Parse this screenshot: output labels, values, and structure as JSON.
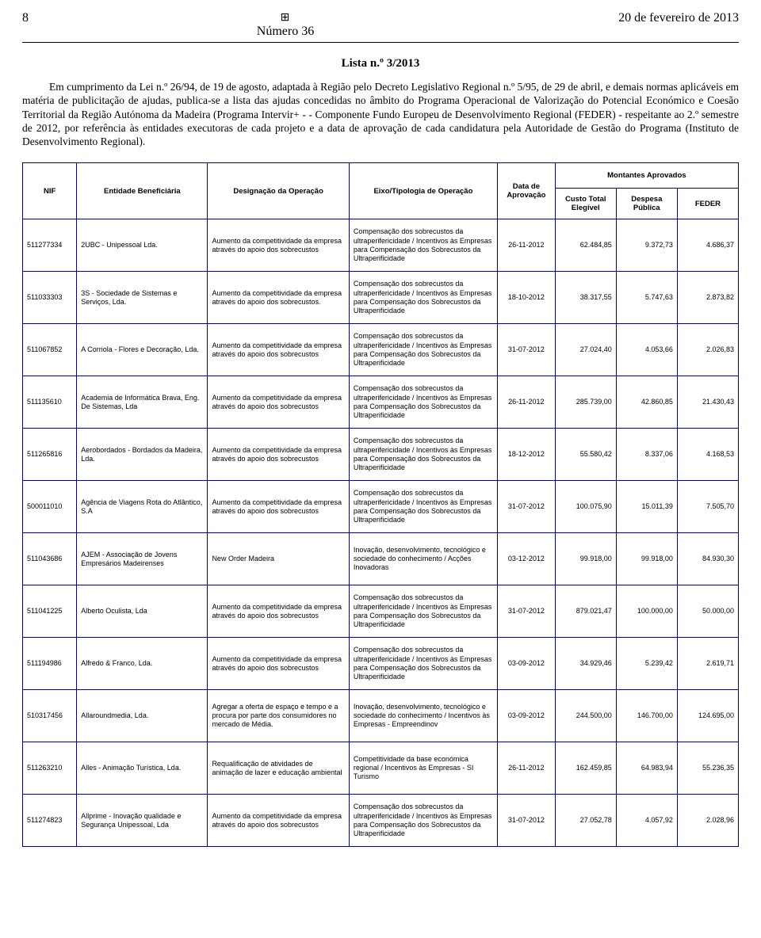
{
  "header": {
    "page_number": "8",
    "issue_label": "Número 36",
    "date": "20 de fevereiro de 2013",
    "crest_glyph": "⊞"
  },
  "title": "Lista n.º 3/2013",
  "prose": "Em cumprimento da Lei n.º 26/94, de 19 de agosto, adaptada à Região pelo Decreto Legislativo Regional n.º 5/95, de 29 de abril, e demais normas aplicáveis em matéria de publicitação de ajudas, publica-se a lista das ajudas concedidas no âmbito do Programa Operacional de Valorização do Potencial Económico e Coesão Territorial da Região Autónoma da Madeira (Programa Intervir+ - - Componente Fundo Europeu de Desenvolvimento Regional (FEDER) - respeitante ao 2.º semestre de 2012, por referência às entidades executoras de cada projeto e a data de aprovação de cada candidatura pela Autoridade de Gestão do Programa (Instituto de Desenvolvimento Regional).",
  "columns": {
    "nif": "NIF",
    "entidade": "Entidade Beneficiária",
    "designacao": "Designação da Operação",
    "eixo": "Eixo/Tipologia de Operação",
    "data": "Data de Aprovação",
    "montantes": "Montantes Aprovados",
    "custo": "Custo Total Elegível",
    "despesa": "Despesa Pública",
    "feder": "FEDER"
  },
  "txt": {
    "aumento": "Aumento da competitividade da empresa através do apoio dos sobrecustos",
    "aumento_dot": "Aumento da competitividade da empresa através do apoio dos sobrecustos.",
    "comp": "Compensação dos sobrecustos da ultraperifericidade / Incentivos às Empresas para Compensação dos Sobrecustos da Ultraperificidade",
    "inov_acc": "Inovação, desenvolvimento, tecnológico e sociedade do conhecimento / Acções Inovadoras",
    "inov_emp": "Inovação, desenvolvimento, tecnológico e sociedade do conhecimento / Incentivos às Empresas - Empreendinov",
    "si_tur": "Competitividade da base económica regional / Incentivos às Empresas - SI Turismo"
  },
  "rows": [
    {
      "nif": "511277334",
      "ent": "2UBC - Unipessoal Lda.",
      "des": "aumento",
      "eixo": "comp",
      "data": "26-11-2012",
      "c": "62.484,85",
      "d": "9.372,73",
      "f": "4.686,37"
    },
    {
      "nif": "511033303",
      "ent": "3S - Sociedade de Sistemas e Serviços, Lda.",
      "des": "aumento_dot",
      "eixo": "comp",
      "data": "18-10-2012",
      "c": "38.317,55",
      "d": "5.747,63",
      "f": "2.873,82"
    },
    {
      "nif": "511067852",
      "ent": "A Corriola - Flores e  Decoração, Lda.",
      "des": "aumento",
      "eixo": "comp",
      "data": "31-07-2012",
      "c": "27.024,40",
      "d": "4.053,66",
      "f": "2.026,83"
    },
    {
      "nif": "511135610",
      "ent": "Academia de Informática Brava, Eng. De Sistemas, Lda",
      "des": "aumento",
      "eixo": "comp",
      "data": "26-11-2012",
      "c": "285.739,00",
      "d": "42.860,85",
      "f": "21.430,43"
    },
    {
      "nif": "511265816",
      "ent": "Aerobordados - Bordados da Madeira, Lda.",
      "des": "aumento",
      "eixo": "comp",
      "data": "18-12-2012",
      "c": "55.580,42",
      "d": "8.337,06",
      "f": "4.168,53"
    },
    {
      "nif": "500011010",
      "ent": "Agência de Viagens Rota do Atlântico, S.A",
      "des": "aumento",
      "eixo": "comp",
      "data": "31-07-2012",
      "c": "100.075,90",
      "d": "15.011,39",
      "f": "7.505,70"
    },
    {
      "nif": "511043686",
      "ent": "AJEM - Associação de Jovens Empresários Madeirenses",
      "des_raw": "New Order Madeira",
      "eixo": "inov_acc",
      "data": "03-12-2012",
      "c": "99.918,00",
      "d": "99.918,00",
      "f": "84.930,30"
    },
    {
      "nif": "511041225",
      "ent": "Alberto Oculista, Lda",
      "des": "aumento",
      "eixo": "comp",
      "data": "31-07-2012",
      "c": "879.021,47",
      "d": "100.000,00",
      "f": "50.000,00"
    },
    {
      "nif": "511194986",
      "ent": "Alfredo & Franco, Lda.",
      "des": "aumento",
      "eixo": "comp",
      "data": "03-09-2012",
      "c": "34.929,46",
      "d": "5.239,42",
      "f": "2.619,71"
    },
    {
      "nif": "510317456",
      "ent": "Allaroundmedia, Lda.",
      "des_raw": "Agregar a oferta de espaço e tempo e a procura por parte dos consumidores no mercado de Média.",
      "eixo": "inov_emp",
      "data": "03-09-2012",
      "c": "244.500,00",
      "d": "146.700,00",
      "f": "124.695,00"
    },
    {
      "nif": "511263210",
      "ent": "Alles - Animação Turística, Lda.",
      "des_raw": "Requalificação de atividades de animação de lazer e educação ambiental",
      "eixo": "si_tur",
      "data": "26-11-2012",
      "c": "162.459,85",
      "d": "64.983,94",
      "f": "55.236,35"
    },
    {
      "nif": "511274823",
      "ent": "Allprime - Inovação qualidade e Segurança Unipessoal, Lda",
      "des": "aumento",
      "eixo": "comp",
      "data": "31-07-2012",
      "c": "27.052,78",
      "d": "4.057,92",
      "f": "2.028,96"
    }
  ]
}
